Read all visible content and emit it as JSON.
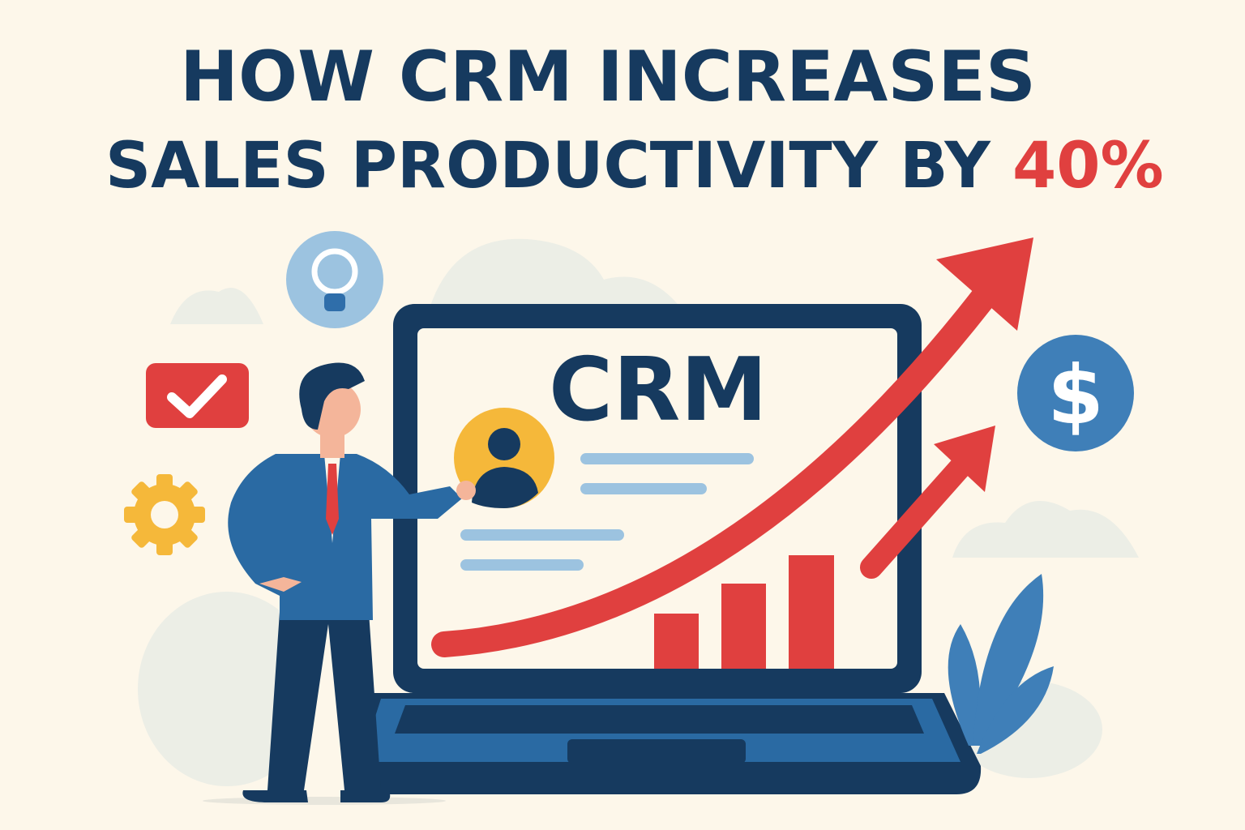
{
  "title": {
    "line1": "HOW CRM INCREASES",
    "line2": "SALES PRODUCTIVITY BY",
    "highlight": "40%"
  },
  "screen": {
    "label": "CRM"
  },
  "icons": [
    "lightbulb-icon",
    "checkmark-icon",
    "gear-icon",
    "dollar-icon",
    "user-avatar-icon",
    "growth-arrow-icon",
    "bar-chart-icon",
    "businessman-illustration",
    "plant-leaves-icon"
  ],
  "colors": {
    "background": "#fdf7ea",
    "navy": "#163a5f",
    "red": "#e0403f",
    "blue": "#2f6eaa",
    "yellow": "#f5b83a",
    "light_blue": "#9cc3e0"
  }
}
